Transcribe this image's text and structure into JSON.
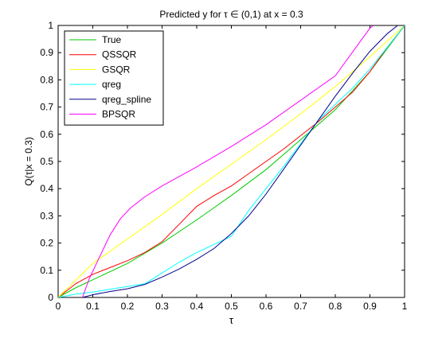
{
  "chart_data": {
    "type": "line",
    "title": "Predicted y for τ ∈ (0,1) at x = 0.3",
    "xlabel": "τ",
    "ylabel": "Q(τ|x = 0.3)",
    "xlim": [
      0,
      1
    ],
    "ylim": [
      0,
      1
    ],
    "xticks": [
      "0",
      "0.1",
      "0.2",
      "0.3",
      "0.4",
      "0.5",
      "0.6",
      "0.7",
      "0.8",
      "0.9",
      "1"
    ],
    "yticks": [
      "0",
      "0.1",
      "0.2",
      "0.3",
      "0.4",
      "0.5",
      "0.6",
      "0.7",
      "0.8",
      "0.9",
      "1"
    ],
    "grid": false,
    "legend_position": "top-left",
    "series": [
      {
        "name": "True",
        "color": "#00cc00",
        "x": [
          0,
          0.05,
          0.1,
          0.2,
          0.3,
          0.4,
          0.5,
          0.6,
          0.7,
          0.8,
          0.9,
          1.0
        ],
        "y": [
          0,
          0.035,
          0.065,
          0.125,
          0.2,
          0.285,
          0.375,
          0.47,
          0.58,
          0.69,
          0.83,
          1.0
        ]
      },
      {
        "name": "QSSQR",
        "color": "#ff0000",
        "x": [
          0,
          0.05,
          0.1,
          0.15,
          0.2,
          0.25,
          0.3,
          0.35,
          0.4,
          0.45,
          0.5,
          0.55,
          0.6,
          0.65,
          0.7,
          0.75,
          0.8,
          0.85,
          0.9,
          0.95,
          1.0
        ],
        "y": [
          0,
          0.05,
          0.085,
          0.11,
          0.135,
          0.165,
          0.205,
          0.27,
          0.335,
          0.375,
          0.41,
          0.455,
          0.5,
          0.545,
          0.595,
          0.645,
          0.7,
          0.755,
          0.83,
          0.92,
          1.0
        ]
      },
      {
        "name": "GSQR",
        "color": "#ffff00",
        "x": [
          0,
          0.1,
          0.2,
          0.3,
          0.4,
          0.5,
          0.6,
          0.7,
          0.8,
          0.9,
          1.0
        ],
        "y": [
          0,
          0.125,
          0.215,
          0.305,
          0.4,
          0.49,
          0.58,
          0.675,
          0.775,
          0.885,
          1.0
        ]
      },
      {
        "name": "qreg",
        "color": "#00ffff",
        "x": [
          0,
          0.05,
          0.1,
          0.2,
          0.25,
          0.3,
          0.35,
          0.4,
          0.45,
          0.5,
          0.55,
          0.6,
          0.65,
          0.7,
          0.75,
          0.8,
          0.85,
          0.9,
          0.95,
          1.0
        ],
        "y": [
          0,
          0.012,
          0.02,
          0.04,
          0.05,
          0.09,
          0.13,
          0.165,
          0.195,
          0.225,
          0.32,
          0.4,
          0.48,
          0.565,
          0.65,
          0.71,
          0.77,
          0.84,
          0.92,
          1.0
        ]
      },
      {
        "name": "qreg_spline",
        "color": "#00008b",
        "x": [
          0.07,
          0.1,
          0.15,
          0.2,
          0.25,
          0.3,
          0.35,
          0.4,
          0.45,
          0.5,
          0.55,
          0.6,
          0.65,
          0.7,
          0.75,
          0.8,
          0.85,
          0.9,
          0.95,
          0.98
        ],
        "y": [
          0,
          0.01,
          0.022,
          0.032,
          0.048,
          0.075,
          0.105,
          0.14,
          0.18,
          0.235,
          0.3,
          0.38,
          0.47,
          0.56,
          0.65,
          0.74,
          0.825,
          0.905,
          0.97,
          1.0
        ]
      },
      {
        "name": "BPSQR",
        "color": "#ff00ff",
        "x": [
          0.07,
          0.09,
          0.12,
          0.15,
          0.18,
          0.21,
          0.25,
          0.3,
          0.35,
          0.4,
          0.5,
          0.6,
          0.7,
          0.8,
          0.9,
          0.91
        ],
        "y": [
          0,
          0.07,
          0.15,
          0.23,
          0.29,
          0.33,
          0.37,
          0.41,
          0.445,
          0.48,
          0.555,
          0.635,
          0.725,
          0.815,
          0.99,
          1.0
        ]
      }
    ]
  }
}
